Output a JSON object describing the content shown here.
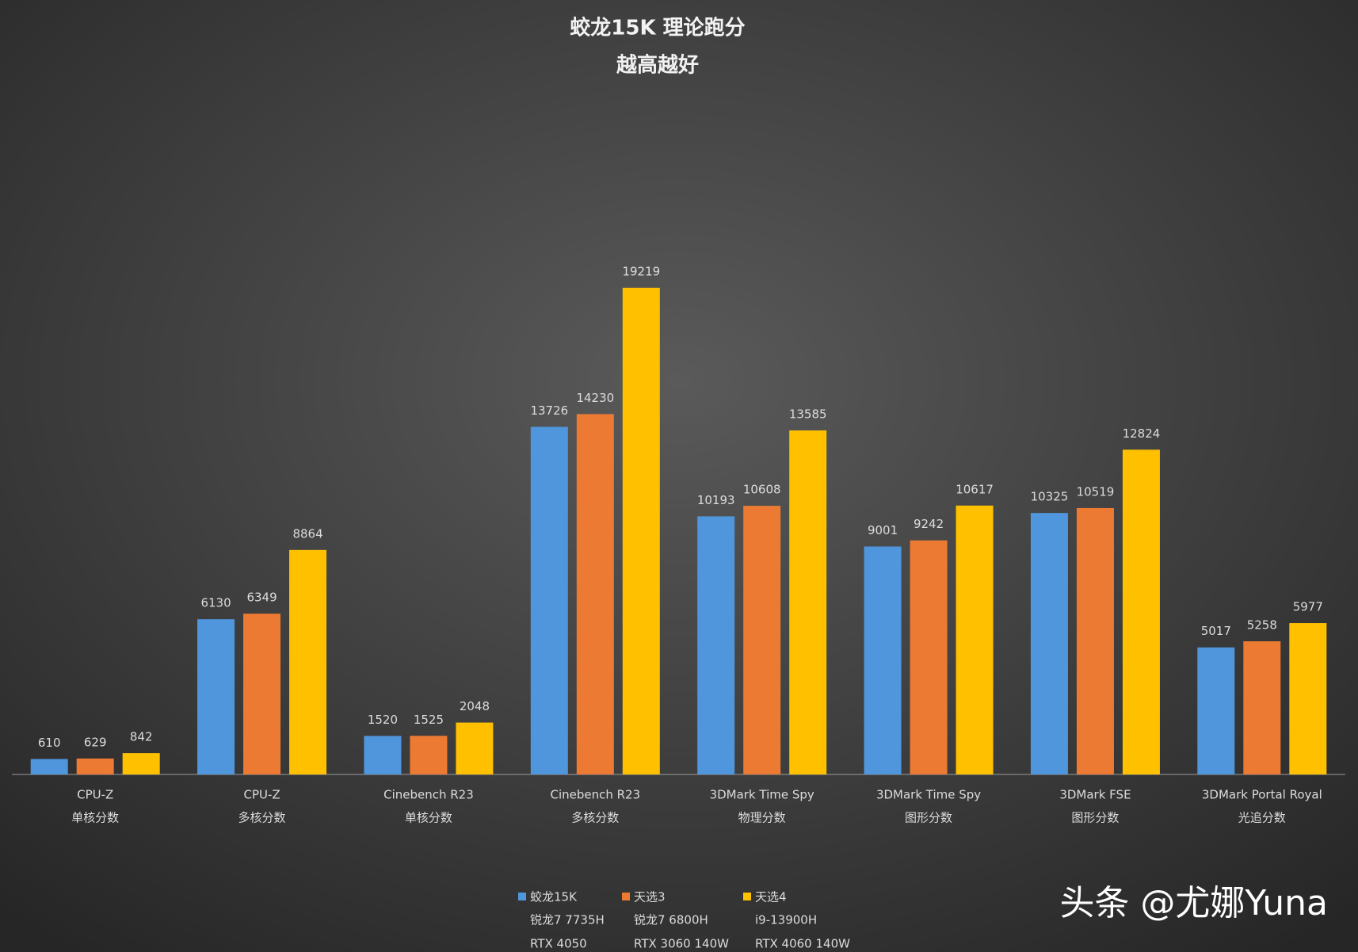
{
  "chart_data": {
    "type": "bar",
    "title": "蛟龙15K 理论跑分",
    "subtitle": "越高越好",
    "categories": [
      [
        "CPU-Z",
        "单核分数"
      ],
      [
        "CPU-Z",
        "多核分数"
      ],
      [
        "Cinebench R23",
        "单核分数"
      ],
      [
        "Cinebench R23",
        "多核分数"
      ],
      [
        "3DMark Time Spy",
        "物理分数"
      ],
      [
        "3DMark Time Spy",
        "图形分数"
      ],
      [
        "3DMark FSE",
        "图形分数"
      ],
      [
        "3DMark Portal Royal",
        "光追分数"
      ]
    ],
    "series": [
      {
        "name": "蛟龙15K",
        "details": [
          "锐龙7 7735H",
          "RTX 4050"
        ],
        "color": "#4f96dc",
        "values": [
          610,
          6130,
          1520,
          13726,
          10193,
          9001,
          10325,
          5017
        ]
      },
      {
        "name": "天选3",
        "details": [
          "锐龙7 6800H",
          "RTX 3060 140W"
        ],
        "color": "#ed7a33",
        "values": [
          629,
          6349,
          1525,
          14230,
          10608,
          9242,
          10519,
          5258
        ]
      },
      {
        "name": "天选4",
        "details": [
          "i9-13900H",
          "RTX 4060 140W"
        ],
        "color": "#ffc000",
        "values": [
          842,
          8864,
          2048,
          19219,
          13585,
          10617,
          12824,
          5977
        ]
      }
    ],
    "watermark": "头条 @尤娜Yuna"
  }
}
